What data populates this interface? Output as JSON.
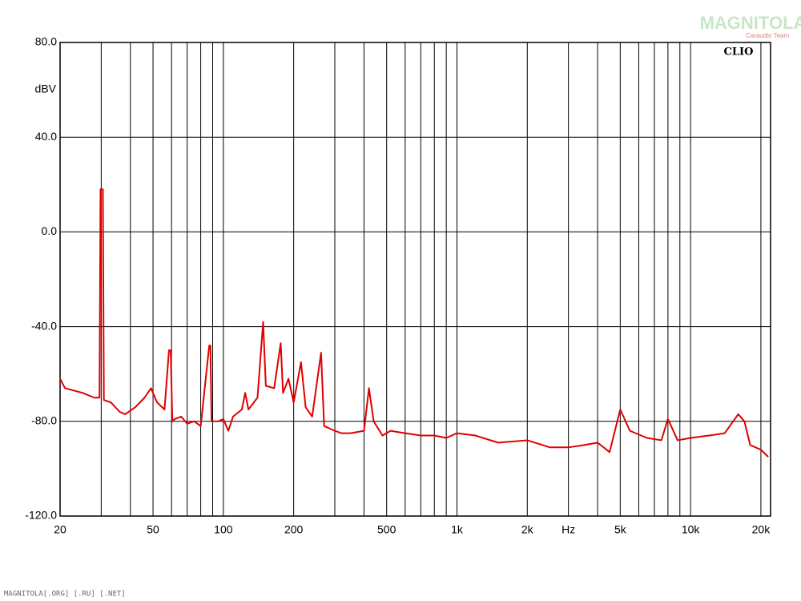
{
  "chart_data": {
    "type": "line",
    "brand": "CLIO",
    "watermark": "MAGNITOLA",
    "watermark_sub": "Caraudio Team",
    "footer": "MAGNITOLA[.ORG] [.RU] [.NET]",
    "ylabel": "dBV",
    "log_x": true,
    "grid": true,
    "xlim": [
      20,
      22000
    ],
    "ylim": [
      -120,
      80
    ],
    "yticks": [
      {
        "value": 80,
        "label": "80.0"
      },
      {
        "value": 40,
        "label": "40.0"
      },
      {
        "value": 0,
        "label": "0.0"
      },
      {
        "value": -40,
        "label": "-40.0"
      },
      {
        "value": -80,
        "label": "-80.0"
      },
      {
        "value": -120,
        "label": "-120.0"
      }
    ],
    "xticks": [
      20,
      50,
      100,
      200,
      500,
      {
        "value": 1000,
        "label": "1k"
      },
      {
        "value": 2000,
        "label": "2k"
      },
      {
        "value": 3000,
        "label": "Hz"
      },
      {
        "value": 5000,
        "label": "5k"
      },
      {
        "value": 10000,
        "label": "10k"
      },
      {
        "value": 20000,
        "label": "20k"
      }
    ],
    "xgrid": [
      30,
      40,
      60,
      70,
      80,
      90,
      300,
      400,
      600,
      700,
      800,
      900,
      4000,
      6000,
      7000,
      8000,
      9000
    ],
    "series": [
      {
        "color": "#e00000",
        "x": [
          20,
          21,
          25,
          28,
          29.5,
          29.8,
          30.5,
          30.8,
          33,
          36,
          38,
          42,
          46,
          49,
          52,
          56,
          58.5,
          59.5,
          60.5,
          62,
          66,
          70,
          75,
          80,
          87,
          88,
          89,
          95,
          100,
          105,
          110,
          120,
          124,
          128,
          140,
          148,
          152,
          165,
          176,
          180,
          190,
          200,
          215,
          225,
          240,
          262,
          270,
          300,
          320,
          350,
          400,
          420,
          440,
          480,
          520,
          600,
          700,
          800,
          900,
          1000,
          1200,
          1500,
          2000,
          2500,
          3000,
          3500,
          4000,
          4500,
          5000,
          5500,
          6500,
          7500,
          8000,
          8800,
          10000,
          12000,
          14000,
          16000,
          17000,
          18000,
          20000,
          21500
        ],
        "values": [
          -62,
          -66,
          -68,
          -70,
          -70,
          18,
          18,
          -71,
          -72,
          -76,
          -77,
          -74,
          -70,
          -66,
          -72,
          -75,
          -50,
          -50,
          -80,
          -79,
          -78,
          -81,
          -80,
          -82,
          -48,
          -48,
          -80,
          -80,
          -79,
          -84,
          -78,
          -75,
          -68,
          -75,
          -70,
          -38,
          -65,
          -66,
          -47,
          -68,
          -62,
          -72,
          -55,
          -74,
          -78,
          -51,
          -82,
          -84,
          -85,
          -85,
          -84,
          -66,
          -80,
          -86,
          -84,
          -85,
          -86,
          -86,
          -87,
          -85,
          -86,
          -89,
          -88,
          -91,
          -91,
          -90,
          -89,
          -93,
          -75,
          -84,
          -87,
          -88,
          -79,
          -88,
          -87,
          -86,
          -85,
          -77,
          -80,
          -90,
          -92,
          -95
        ]
      }
    ]
  }
}
